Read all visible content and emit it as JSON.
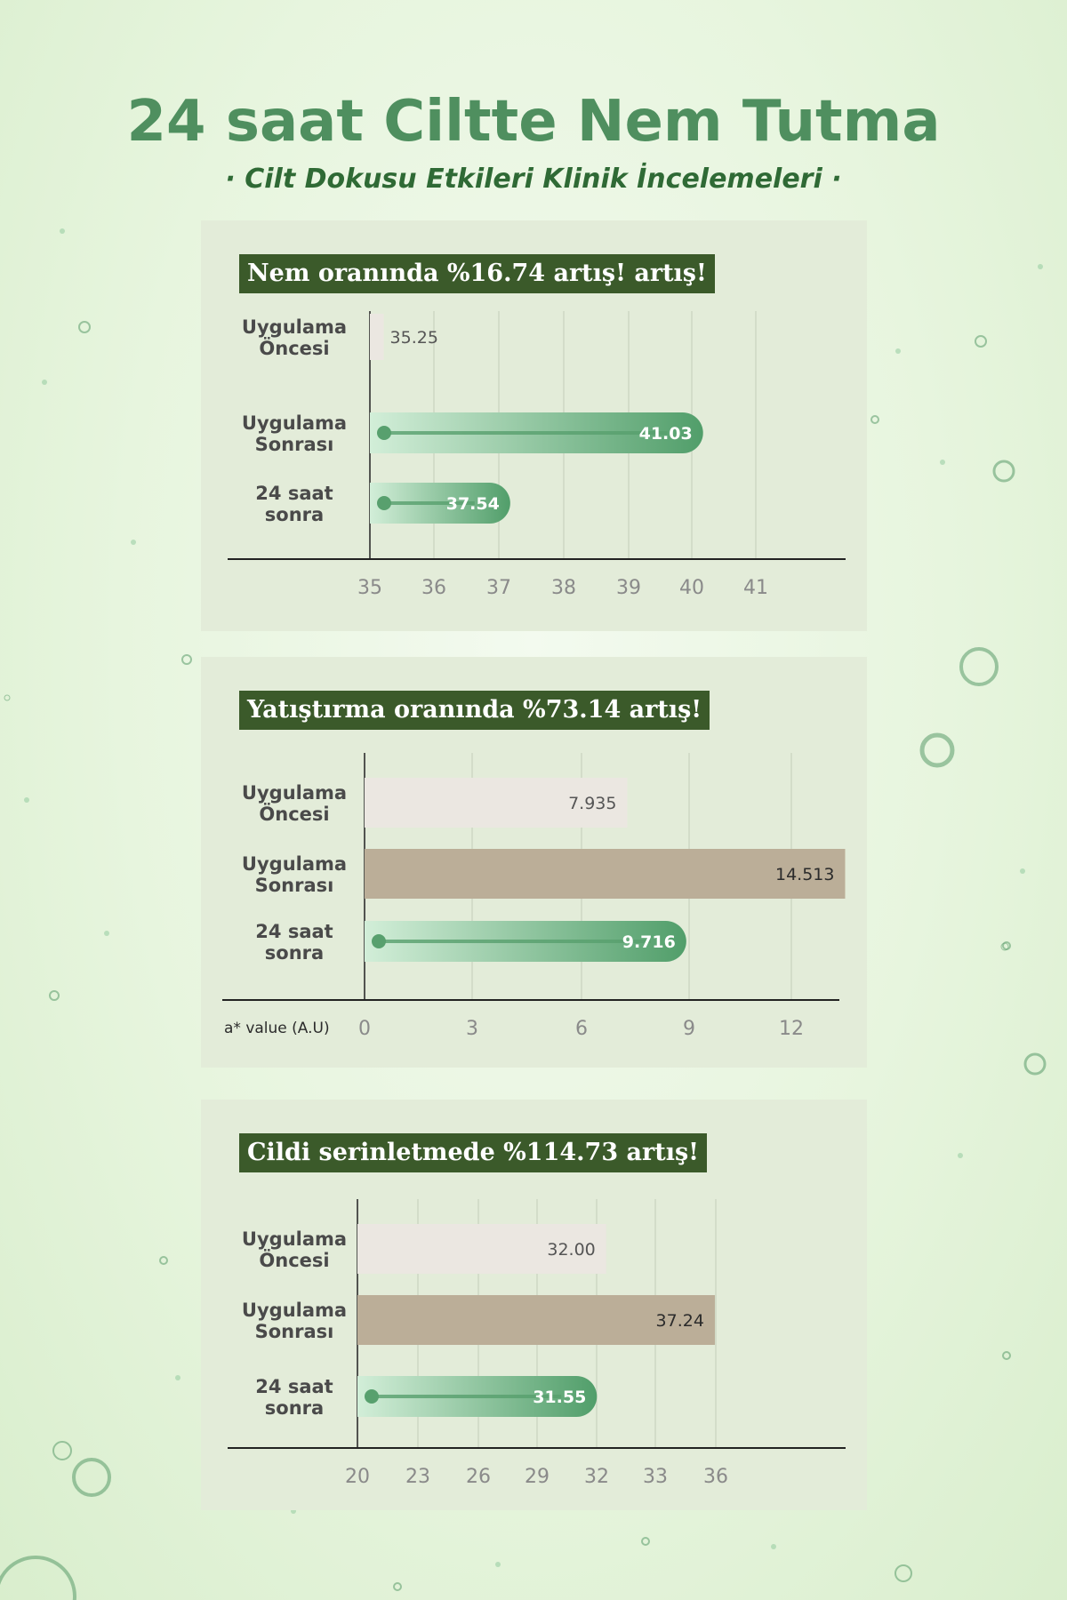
{
  "page": {
    "title": "24 saat Ciltte Nem Tutma",
    "subtitle": "· Cilt Dokusu Etkileri Klinik İncelemeleri ·"
  },
  "colors": {
    "title_green": "#4f8f5f",
    "subtitle_green": "#2f6a35",
    "panel_bg": "#e3ecd9",
    "title_badge_bg": "#3b5a2a",
    "bar_before": "#ebe7e1",
    "bar_after_tan": "#bbae98",
    "bar_green_start": "#d2eed8",
    "bar_green_end": "#519e6a"
  },
  "chart_data": [
    {
      "type": "bar",
      "orientation": "horizontal",
      "title": "Nem oranında %16.74 artış! artış!",
      "categories": [
        "Uygulama Öncesi",
        "Uygulama Sonrası",
        "24 saat sonra"
      ],
      "values": [
        35.25,
        41.03,
        37.54
      ],
      "value_labels": [
        "35.25",
        "41.03",
        "37.54"
      ],
      "bar_styles": [
        "plain",
        "green-pill",
        "green-pill"
      ],
      "xlabel": "",
      "xlim": [
        35,
        42
      ],
      "ticks": [
        "35",
        "36",
        "37",
        "38",
        "39",
        "40",
        "41"
      ],
      "grid": true
    },
    {
      "type": "bar",
      "orientation": "horizontal",
      "title": "Yatıştırma oranında %73.14 artış!",
      "categories": [
        "Uygulama Öncesi",
        "Uygulama Sonrası",
        "24 saat sonra"
      ],
      "values": [
        7.935,
        14.513,
        9.716
      ],
      "value_labels": [
        "7.935",
        "14.513",
        "9.716"
      ],
      "bar_styles": [
        "plain",
        "tan",
        "green-pill"
      ],
      "xlabel": "a* value (A.U)",
      "xlim": [
        0,
        14.5
      ],
      "ticks": [
        "0",
        "3",
        "6",
        "9",
        "12"
      ],
      "grid": true
    },
    {
      "type": "bar",
      "orientation": "horizontal",
      "title": "Cildi serinletmede %114.73 artış!",
      "categories": [
        "Uygulama Öncesi",
        "Uygulama Sonrası",
        "24 saat sonra"
      ],
      "values": [
        32.0,
        37.24,
        31.55
      ],
      "value_labels": [
        "32.00",
        "37.24",
        "31.55"
      ],
      "bar_styles": [
        "plain",
        "tan",
        "green-pill"
      ],
      "xlabel": "",
      "xlim": [
        20,
        39
      ],
      "ticks": [
        "20",
        "23",
        "26",
        "29",
        "32",
        "33",
        "36"
      ],
      "grid": true
    }
  ]
}
